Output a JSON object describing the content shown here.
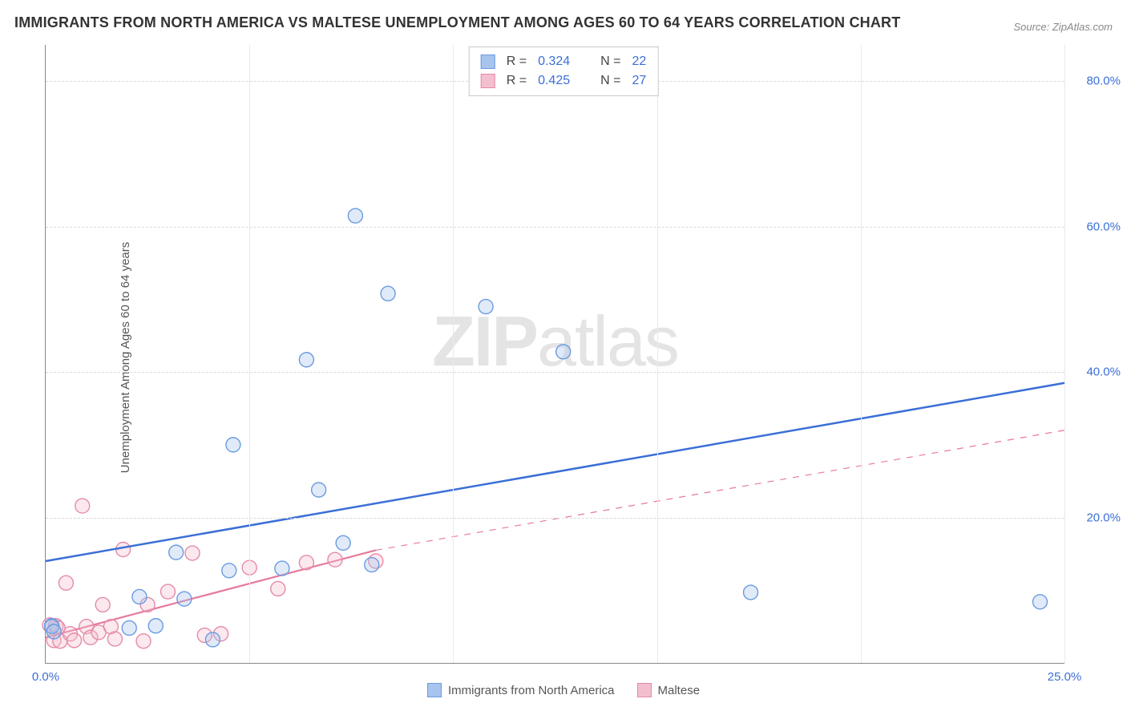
{
  "title": "IMMIGRANTS FROM NORTH AMERICA VS MALTESE UNEMPLOYMENT AMONG AGES 60 TO 64 YEARS CORRELATION CHART",
  "source": "Source: ZipAtlas.com",
  "watermark": {
    "part1": "ZIP",
    "part2": "atlas"
  },
  "y_axis_label": "Unemployment Among Ages 60 to 64 years",
  "chart": {
    "type": "scatter",
    "x_domain": [
      0,
      25
    ],
    "y_domain": [
      0,
      85
    ],
    "x_ticks": [
      0,
      25
    ],
    "x_tick_labels": [
      "0.0%",
      "25.0%"
    ],
    "y_ticks": [
      20,
      40,
      60,
      80
    ],
    "y_tick_labels": [
      "20.0%",
      "40.0%",
      "60.0%",
      "80.0%"
    ],
    "v_grid_positions": [
      5,
      10,
      15,
      20,
      25
    ],
    "background_color": "#ffffff",
    "grid_color": "#d9d9d9",
    "axis_color": "#888888",
    "tick_label_color": "#3b6fd6",
    "marker_radius": 9,
    "series": [
      {
        "name": "Immigrants from North America",
        "color_fill": "#a7c4ef",
        "color_stroke": "#6a9be0",
        "R": "0.324",
        "N": "22",
        "trend": {
          "x1": 0,
          "y1": 14.0,
          "x2": 25,
          "y2": 38.5,
          "dashed": false,
          "stroke": "#3b6fd6",
          "width": 2.5
        },
        "points": [
          {
            "x": 0.15,
            "y": 5.1
          },
          {
            "x": 0.15,
            "y": 5.0
          },
          {
            "x": 0.2,
            "y": 4.3
          },
          {
            "x": 2.05,
            "y": 4.8
          },
          {
            "x": 2.3,
            "y": 9.1
          },
          {
            "x": 2.7,
            "y": 5.1
          },
          {
            "x": 3.2,
            "y": 15.2
          },
          {
            "x": 3.4,
            "y": 8.8
          },
          {
            "x": 4.1,
            "y": 3.2
          },
          {
            "x": 4.5,
            "y": 12.7
          },
          {
            "x": 4.6,
            "y": 30.0
          },
          {
            "x": 5.8,
            "y": 13.0
          },
          {
            "x": 6.4,
            "y": 41.7
          },
          {
            "x": 6.7,
            "y": 23.8
          },
          {
            "x": 7.3,
            "y": 16.5
          },
          {
            "x": 7.6,
            "y": 61.5
          },
          {
            "x": 8.0,
            "y": 13.5
          },
          {
            "x": 8.4,
            "y": 50.8
          },
          {
            "x": 10.8,
            "y": 49.0
          },
          {
            "x": 12.7,
            "y": 42.8
          },
          {
            "x": 17.3,
            "y": 9.7
          },
          {
            "x": 24.4,
            "y": 8.4
          }
        ]
      },
      {
        "name": "Maltese",
        "color_fill": "#f3bfcf",
        "color_stroke": "#e68aa8",
        "R": "0.425",
        "N": "27",
        "trend": {
          "x1": 0,
          "y1": 3.5,
          "x2": 8.1,
          "y2": 15.5,
          "dashed": false,
          "stroke": "#e67a9b",
          "width": 2.2
        },
        "trend_ext": {
          "x1": 8.1,
          "y1": 15.5,
          "x2": 25,
          "y2": 32.0,
          "dashed": true,
          "stroke": "#e67a9b",
          "width": 1.2
        },
        "points": [
          {
            "x": 0.1,
            "y": 5.2
          },
          {
            "x": 0.2,
            "y": 3.1
          },
          {
            "x": 0.25,
            "y": 5.1
          },
          {
            "x": 0.3,
            "y": 4.8
          },
          {
            "x": 0.35,
            "y": 3.0
          },
          {
            "x": 0.5,
            "y": 11.0
          },
          {
            "x": 0.6,
            "y": 4.0
          },
          {
            "x": 0.7,
            "y": 3.1
          },
          {
            "x": 0.9,
            "y": 21.6
          },
          {
            "x": 1.0,
            "y": 5.0
          },
          {
            "x": 1.1,
            "y": 3.5
          },
          {
            "x": 1.3,
            "y": 4.2
          },
          {
            "x": 1.4,
            "y": 8.0
          },
          {
            "x": 1.6,
            "y": 5.0
          },
          {
            "x": 1.7,
            "y": 3.3
          },
          {
            "x": 1.9,
            "y": 15.6
          },
          {
            "x": 2.4,
            "y": 3.0
          },
          {
            "x": 2.5,
            "y": 8.0
          },
          {
            "x": 3.0,
            "y": 9.8
          },
          {
            "x": 3.6,
            "y": 15.1
          },
          {
            "x": 3.9,
            "y": 3.8
          },
          {
            "x": 4.3,
            "y": 4.0
          },
          {
            "x": 5.0,
            "y": 13.1
          },
          {
            "x": 5.7,
            "y": 10.2
          },
          {
            "x": 6.4,
            "y": 13.8
          },
          {
            "x": 7.1,
            "y": 14.2
          },
          {
            "x": 8.1,
            "y": 14.0
          }
        ]
      }
    ]
  },
  "stats_legend": {
    "rows": [
      {
        "swatch_fill": "#a7c4ef",
        "swatch_stroke": "#6a9be0",
        "r_label": "R =",
        "r_value": "0.324",
        "n_label": "N =",
        "n_value": "22"
      },
      {
        "swatch_fill": "#f3bfcf",
        "swatch_stroke": "#e68aa8",
        "r_label": "R =",
        "r_value": "0.425",
        "n_label": "N =",
        "n_value": "27"
      }
    ]
  },
  "bottom_legend": {
    "items": [
      {
        "swatch_fill": "#a7c4ef",
        "swatch_stroke": "#6a9be0",
        "label": "Immigrants from North America"
      },
      {
        "swatch_fill": "#f3bfcf",
        "swatch_stroke": "#e68aa8",
        "label": "Maltese"
      }
    ]
  }
}
